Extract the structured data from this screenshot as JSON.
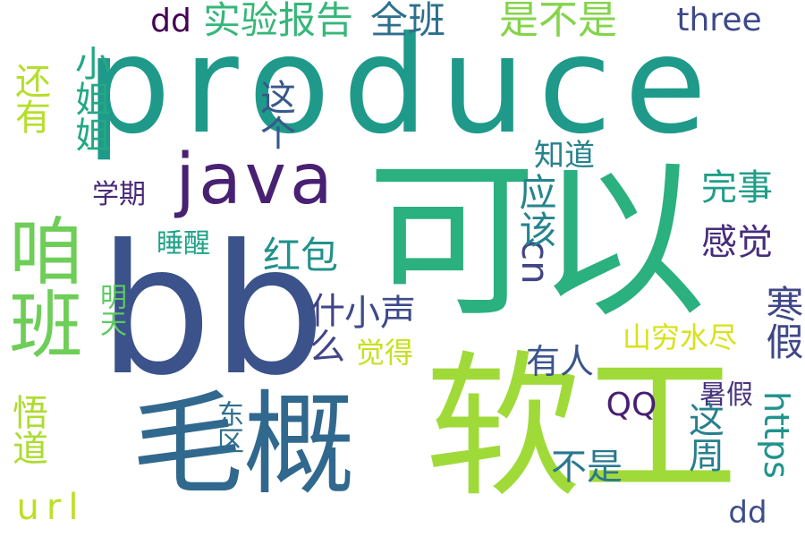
{
  "words": [
    {
      "id": "produce",
      "text": "produce",
      "color": "#1f9a8a",
      "orientation": "horizontal"
    },
    {
      "id": "ke-yi",
      "text": "可以",
      "color": "#2bb07f",
      "orientation": "horizontal"
    },
    {
      "id": "bb",
      "text": "bb",
      "color": "#3b528b",
      "orientation": "horizontal"
    },
    {
      "id": "ruan-gong",
      "text": "软工",
      "color": "#a0da39",
      "orientation": "horizontal"
    },
    {
      "id": "mao-gai",
      "text": "毛概",
      "color": "#31688e",
      "orientation": "horizontal"
    },
    {
      "id": "zan-ban",
      "text": "咱班",
      "color": "#6ece58",
      "orientation": "vertical"
    },
    {
      "id": "java",
      "text": "java",
      "color": "#482173",
      "orientation": "horizontal"
    },
    {
      "id": "shi-yan-bao-gao",
      "text": "实验报告",
      "color": "#35b779",
      "orientation": "horizontal"
    },
    {
      "id": "quan-ban",
      "text": "全班",
      "color": "#2d708e",
      "orientation": "horizontal"
    },
    {
      "id": "shi-bu-shi",
      "text": "是不是",
      "color": "#84d44b",
      "orientation": "horizontal"
    },
    {
      "id": "three",
      "text": "three",
      "color": "#3e4989",
      "orientation": "horizontal"
    },
    {
      "id": "dd-top",
      "text": "dd",
      "color": "#440154",
      "orientation": "horizontal"
    },
    {
      "id": "xiao-jie-jie",
      "text": "小姐姐",
      "color": "#22a884",
      "orientation": "vertical"
    },
    {
      "id": "hai-you",
      "text": "还有",
      "color": "#b5de2b",
      "orientation": "vertical"
    },
    {
      "id": "zhe-ge",
      "text": "这个",
      "color": "#38588c",
      "orientation": "vertical"
    },
    {
      "id": "zhi-dao",
      "text": "知道",
      "color": "#26828e",
      "orientation": "horizontal"
    },
    {
      "id": "wan-shi",
      "text": "完事",
      "color": "#1f9e89",
      "orientation": "horizontal"
    },
    {
      "id": "xue-qi",
      "text": "学期",
      "color": "#482878",
      "orientation": "horizontal"
    },
    {
      "id": "gan-jue",
      "text": "感觉",
      "color": "#472d7b",
      "orientation": "horizontal"
    },
    {
      "id": "hong-bao",
      "text": "红包",
      "color": "#21918c",
      "orientation": "horizontal"
    },
    {
      "id": "shui-xing",
      "text": "睡醒",
      "color": "#1fa187",
      "orientation": "horizontal"
    },
    {
      "id": "cn",
      "text": "cn",
      "color": "#414487",
      "orientation": "vertical"
    },
    {
      "id": "ying-gai",
      "text": "应该",
      "color": "#25848e",
      "orientation": "vertical"
    },
    {
      "id": "han-jia",
      "text": "寒假",
      "color": "#3f4788",
      "orientation": "vertical"
    },
    {
      "id": "shen-me",
      "text": "什么",
      "color": "#414487",
      "orientation": "vertical"
    },
    {
      "id": "xiao-sheng",
      "text": "小声",
      "color": "#3f4a8a",
      "orientation": "horizontal"
    },
    {
      "id": "ming-tian",
      "text": "明天",
      "color": "#5ec962",
      "orientation": "vertical"
    },
    {
      "id": "jue-de",
      "text": "觉得",
      "color": "#c8e020",
      "orientation": "horizontal"
    },
    {
      "id": "shan-qiong-shui-jin",
      "text": "山穷水尽",
      "color": "#d8e219",
      "orientation": "horizontal"
    },
    {
      "id": "you-ren",
      "text": "有人",
      "color": "#39558c",
      "orientation": "horizontal"
    },
    {
      "id": "qq",
      "text": "QQ",
      "color": "#481f70",
      "orientation": "horizontal"
    },
    {
      "id": "shu-jia",
      "text": "暑假",
      "color": "#46327e",
      "orientation": "horizontal"
    },
    {
      "id": "https",
      "text": "https",
      "color": "#20938c",
      "orientation": "vertical"
    },
    {
      "id": "zhe-zhou",
      "text": "这周",
      "color": "#277f8e",
      "orientation": "vertical"
    },
    {
      "id": "wu-dao",
      "text": "悟道",
      "color": "#addc30",
      "orientation": "vertical"
    },
    {
      "id": "dong-qu",
      "text": "东区",
      "color": "#2e6f8e",
      "orientation": "vertical"
    },
    {
      "id": "bu-shi",
      "text": "不是",
      "color": "#2a778e",
      "orientation": "horizontal"
    },
    {
      "id": "url",
      "text": "url",
      "color": "#bddf26",
      "orientation": "horizontal"
    },
    {
      "id": "dd-bottom",
      "text": "dd",
      "color": "#3d4d8a",
      "orientation": "horizontal"
    }
  ]
}
